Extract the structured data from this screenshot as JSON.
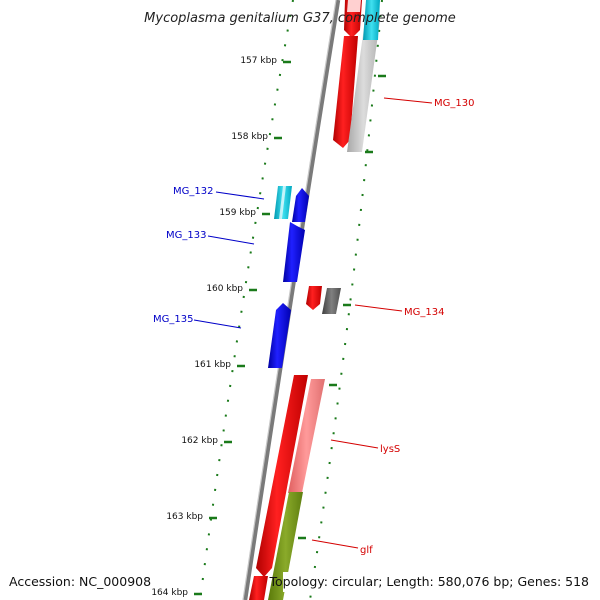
{
  "title": "Mycoplasma genitalium G37, complete genome",
  "footer": {
    "accession": "Accession: NC_000908",
    "info": "Topology: circular; Length: 580,076 bp; Genes: 518"
  },
  "ticks": [
    "157 kbp",
    "158 kbp",
    "159 kbp",
    "160 kbp",
    "161 kbp",
    "162 kbp",
    "163 kbp",
    "164 kbp"
  ],
  "genes": {
    "reverse": [
      {
        "label": "MG_132",
        "color": "#00bcd4"
      },
      {
        "label": "MG_133",
        "color": "#0000ff"
      },
      {
        "label": "MG_135",
        "color": "#0000ff"
      }
    ],
    "forward": [
      {
        "label": "MG_130",
        "color": "#ff0000"
      },
      {
        "label": "MG_134",
        "color": "#ff0000"
      },
      {
        "label": "lysS",
        "color": "#ff0000"
      },
      {
        "label": "glf",
        "color": "#ff0000"
      }
    ]
  },
  "colors": {
    "forward_cds": "#ff0000",
    "reverse_cds": "#0000ff",
    "rna": "#00bcd4",
    "gc_high": "#ff8080",
    "gc_alt": "#7a9a1a",
    "backbone": "#888888",
    "ticks": "#1a7a1a"
  }
}
